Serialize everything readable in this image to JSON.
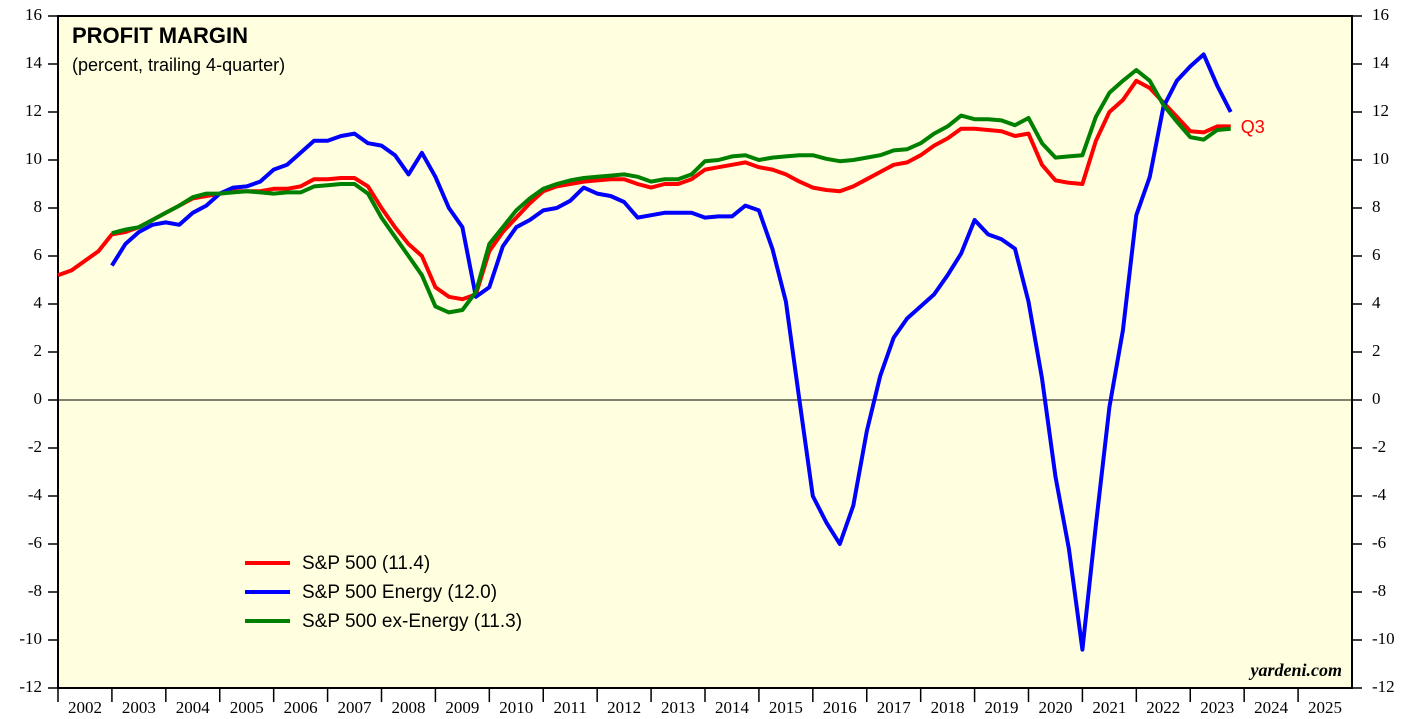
{
  "chart_data": {
    "type": "line",
    "title": "PROFIT MARGIN",
    "subtitle": "(percent, trailing 4-quarter)",
    "source": "yardeni.com",
    "legend": "lower left",
    "annotations": [
      {
        "text": "Q3",
        "color": "#ff0000"
      }
    ],
    "xlim": [
      2002,
      2026
    ],
    "xticks": [
      2002,
      2003,
      2004,
      2005,
      2006,
      2007,
      2008,
      2009,
      2010,
      2011,
      2012,
      2013,
      2014,
      2015,
      2016,
      2017,
      2018,
      2019,
      2020,
      2021,
      2022,
      2023,
      2024,
      2025
    ],
    "ylim": [
      -12,
      16
    ],
    "yticks": [
      -12,
      -10,
      -8,
      -6,
      -4,
      -2,
      0,
      2,
      4,
      6,
      8,
      10,
      12,
      14,
      16
    ],
    "x": [
      2002,
      2002.25,
      2002.5,
      2002.75,
      2003,
      2003.25,
      2003.5,
      2003.75,
      2004,
      2004.25,
      2004.5,
      2004.75,
      2005,
      2005.25,
      2005.5,
      2005.75,
      2006,
      2006.25,
      2006.5,
      2006.75,
      2007,
      2007.25,
      2007.5,
      2007.75,
      2008,
      2008.25,
      2008.5,
      2008.75,
      2009,
      2009.25,
      2009.5,
      2009.75,
      2010,
      2010.25,
      2010.5,
      2010.75,
      2011,
      2011.25,
      2011.5,
      2011.75,
      2012,
      2012.25,
      2012.5,
      2012.75,
      2013,
      2013.25,
      2013.5,
      2013.75,
      2014,
      2014.25,
      2014.5,
      2014.75,
      2015,
      2015.25,
      2015.5,
      2015.75,
      2016,
      2016.25,
      2016.5,
      2016.75,
      2017,
      2017.25,
      2017.5,
      2017.75,
      2018,
      2018.25,
      2018.5,
      2018.75,
      2019,
      2019.25,
      2019.5,
      2019.75,
      2020,
      2020.25,
      2020.5,
      2020.75,
      2021,
      2021.25,
      2021.5,
      2021.75,
      2022,
      2022.25,
      2022.5,
      2022.75,
      2023,
      2023.25,
      2023.5,
      2023.75
    ],
    "series": [
      {
        "name": "S&P 500 (11.4)",
        "color": "#ff0000",
        "values": [
          5.2,
          5.4,
          5.8,
          6.2,
          6.9,
          7.0,
          7.2,
          7.5,
          7.8,
          8.1,
          8.4,
          8.5,
          8.6,
          8.7,
          8.7,
          8.7,
          8.8,
          8.8,
          8.9,
          9.2,
          9.2,
          9.25,
          9.25,
          8.9,
          8.0,
          7.2,
          6.5,
          6.0,
          4.7,
          4.3,
          4.2,
          4.4,
          6.2,
          7.0,
          7.6,
          8.2,
          8.7,
          8.9,
          9.0,
          9.1,
          9.15,
          9.2,
          9.2,
          9.0,
          8.85,
          9.0,
          9.0,
          9.2,
          9.6,
          9.7,
          9.8,
          9.9,
          9.7,
          9.6,
          9.4,
          9.1,
          8.85,
          8.75,
          8.7,
          8.9,
          9.2,
          9.5,
          9.8,
          9.9,
          10.2,
          10.6,
          10.9,
          11.3,
          11.3,
          11.25,
          11.2,
          11.0,
          11.1,
          9.8,
          9.15,
          9.05,
          9.0,
          10.8,
          12.0,
          12.5,
          13.3,
          13.0,
          12.4,
          11.8,
          11.2,
          11.15,
          11.4,
          11.4
        ]
      },
      {
        "name": "S&P 500 Energy (12.0)",
        "color": "#0000ff",
        "values": [
          null,
          null,
          null,
          null,
          5.6,
          6.5,
          7.0,
          7.3,
          7.4,
          7.3,
          7.8,
          8.1,
          8.6,
          8.85,
          8.9,
          9.1,
          9.6,
          9.8,
          10.3,
          10.8,
          10.8,
          11.0,
          11.1,
          10.7,
          10.6,
          10.2,
          9.4,
          10.3,
          9.3,
          8.0,
          7.2,
          4.3,
          4.7,
          6.4,
          7.2,
          7.5,
          7.9,
          8.0,
          8.3,
          8.85,
          8.6,
          8.5,
          8.25,
          7.6,
          7.7,
          7.8,
          7.8,
          7.8,
          7.6,
          7.65,
          7.65,
          8.1,
          7.9,
          6.3,
          4.1,
          0.0,
          -4.0,
          -5.1,
          -6.0,
          -4.4,
          -1.3,
          1.0,
          2.6,
          3.4,
          3.9,
          4.4,
          5.2,
          6.1,
          7.5,
          6.9,
          6.7,
          6.3,
          4.1,
          0.9,
          -3.2,
          -6.2,
          -10.4,
          -5.2,
          -0.3,
          2.9,
          7.7,
          9.3,
          12.2,
          13.3,
          13.9,
          14.4,
          13.1,
          12.0
        ]
      },
      {
        "name": "S&P 500 ex-Energy (11.3)",
        "color": "#008000",
        "values": [
          null,
          null,
          null,
          null,
          6.95,
          7.1,
          7.2,
          7.5,
          7.8,
          8.1,
          8.45,
          8.6,
          8.6,
          8.65,
          8.7,
          8.65,
          8.6,
          8.65,
          8.65,
          8.9,
          8.95,
          9.0,
          9.0,
          8.6,
          7.6,
          6.8,
          6.0,
          5.2,
          3.9,
          3.65,
          3.75,
          4.5,
          6.5,
          7.2,
          7.9,
          8.4,
          8.8,
          9.0,
          9.15,
          9.25,
          9.3,
          9.35,
          9.4,
          9.3,
          9.1,
          9.2,
          9.2,
          9.4,
          9.95,
          10.0,
          10.15,
          10.2,
          10.0,
          10.1,
          10.15,
          10.2,
          10.2,
          10.05,
          9.95,
          10.0,
          10.1,
          10.2,
          10.4,
          10.45,
          10.7,
          11.1,
          11.4,
          11.85,
          11.7,
          11.7,
          11.65,
          11.45,
          11.75,
          10.7,
          10.1,
          10.15,
          10.2,
          11.8,
          12.8,
          13.3,
          13.75,
          13.3,
          12.3,
          11.6,
          10.95,
          10.85,
          11.25,
          11.3
        ]
      }
    ]
  }
}
